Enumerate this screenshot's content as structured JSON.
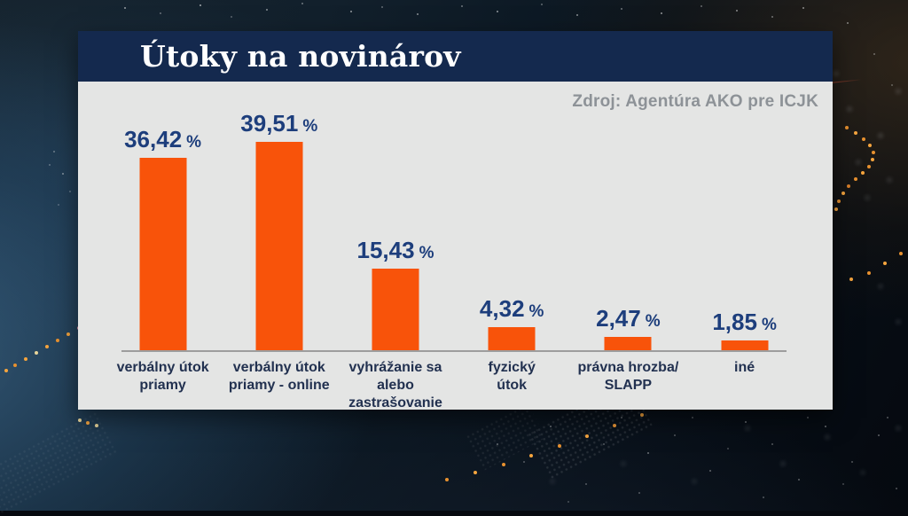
{
  "panel": {
    "title": "Útoky na novinárov",
    "source": "Zdroj: Agentúra AKO pre ICJK"
  },
  "chart_data": {
    "type": "bar",
    "title": "Útoky na novinárov",
    "source": "Zdroj: Agentúra AKO pre ICJK",
    "unit": "%",
    "categories": [
      "verbálny útok\npriamy",
      "verbálny útok\npriamy - online",
      "vyhrážanie sa\nalebo\nzastrašovanie",
      "fyzický\nútok",
      "právna hrozba/\nSLAPP",
      "iné"
    ],
    "values": [
      36.42,
      39.51,
      15.43,
      4.32,
      2.47,
      1.85
    ],
    "value_labels": [
      "36,42",
      "39,51",
      "15,43",
      "4,32",
      "2,47",
      "1,85"
    ],
    "bar_color": "#f8530a",
    "value_color": "#1d3e7c",
    "label_color": "#223150",
    "title_bg_color": "#14294e",
    "panel_bg_color": "#e4e5e4",
    "ylim": [
      0,
      42
    ],
    "grid": false,
    "legend": false,
    "xlabel": "",
    "ylabel": ""
  }
}
